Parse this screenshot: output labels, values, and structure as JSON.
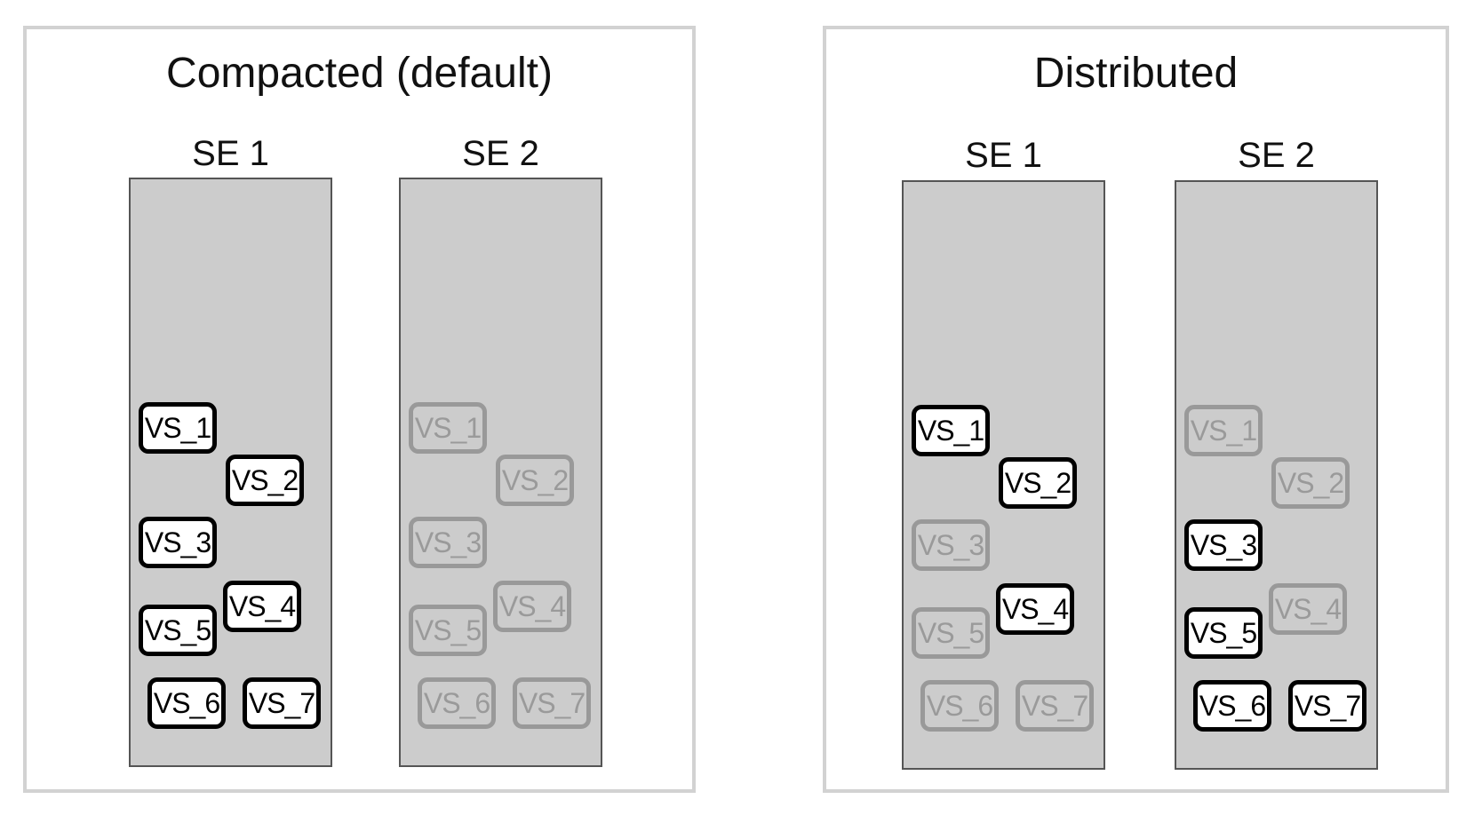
{
  "panels": [
    {
      "title": "Compacted (default)",
      "service_engines": [
        {
          "label": "SE 1",
          "active_vs": [
            "VS_1",
            "VS_2",
            "VS_3",
            "VS_4",
            "VS_5",
            "VS_6",
            "VS_7"
          ]
        },
        {
          "label": "SE 2",
          "active_vs": []
        }
      ]
    },
    {
      "title": "Distributed",
      "service_engines": [
        {
          "label": "SE 1",
          "active_vs": [
            "VS_1",
            "VS_2",
            "VS_4"
          ]
        },
        {
          "label": "SE 2",
          "active_vs": [
            "VS_3",
            "VS_5",
            "VS_6",
            "VS_7"
          ]
        }
      ]
    }
  ],
  "virtual_services": [
    "VS_1",
    "VS_2",
    "VS_3",
    "VS_4",
    "VS_5",
    "VS_6",
    "VS_7"
  ],
  "colors": {
    "panel_border": "#d2d2d2",
    "se_fill": "#cccccc",
    "active_border": "#000000",
    "active_fill": "#ffffff",
    "inactive_border": "#999999",
    "inactive_text": "#9a9a9a"
  }
}
